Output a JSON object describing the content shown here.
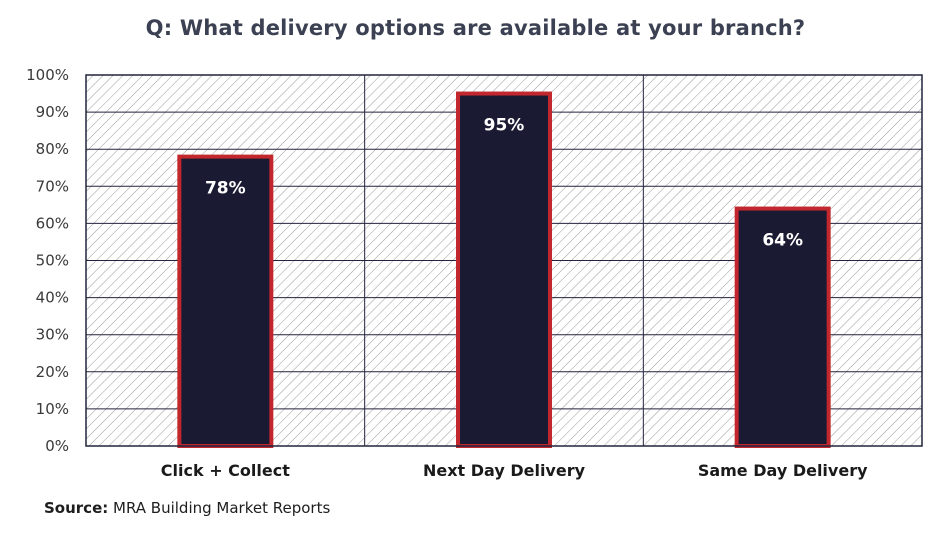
{
  "chart_data": {
    "type": "bar",
    "title": "Q: What delivery options are available at your branch?",
    "categories": [
      "Click + Collect",
      "Next Day Delivery",
      "Same Day Delivery"
    ],
    "values": [
      78,
      95,
      64
    ],
    "value_labels": [
      "78%",
      "95%",
      "64%"
    ],
    "ylim": [
      0,
      100
    ],
    "y_ticks": [
      "0%",
      "10%",
      "20%",
      "30%",
      "40%",
      "50%",
      "60%",
      "70%",
      "80%",
      "90%",
      "100%"
    ],
    "y_tick_values": [
      0,
      10,
      20,
      30,
      40,
      50,
      60,
      70,
      80,
      90,
      100
    ],
    "grid": true,
    "background_pattern": "diagonal-hatch",
    "colors": {
      "bar_fill": "#1b1a33",
      "bar_stroke": "#c1272d",
      "grid": "#23233d",
      "hatch": "#9a9a9a"
    }
  },
  "source": {
    "label": "Source:",
    "text": " MRA Building Market Reports"
  }
}
